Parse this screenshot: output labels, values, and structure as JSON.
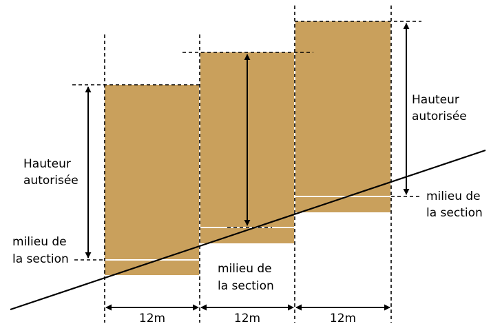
{
  "colors": {
    "block": "#c9a05c",
    "line": "#000000",
    "midline": "#ffffff",
    "background": "#ffffff"
  },
  "labels": {
    "hauteur_left_1": "Hauteur",
    "hauteur_left_2": "autorisée",
    "hauteur_right_1": "Hauteur",
    "hauteur_right_2": "autorisée",
    "milieu_left_1": "milieu de",
    "milieu_left_2": "la section",
    "milieu_center_1": "milieu de",
    "milieu_center_2": "la section",
    "milieu_right_1": "milieu de",
    "milieu_right_2": "la section"
  },
  "sections": [
    {
      "width_label": "12m"
    },
    {
      "width_label": "12m"
    },
    {
      "width_label": "12m"
    }
  ]
}
